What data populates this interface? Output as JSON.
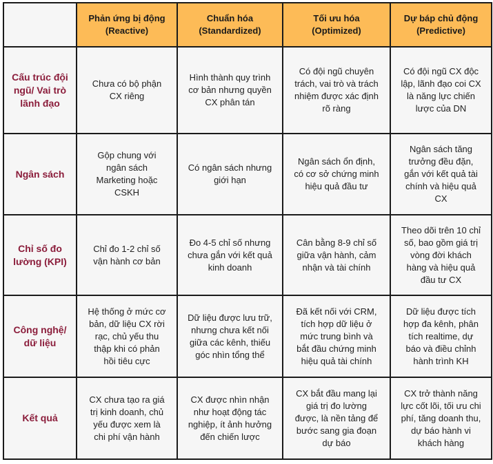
{
  "columns": [
    {
      "title": "Phản ứng bị động",
      "subtitle": "(Reactive)"
    },
    {
      "title": "Chuẩn hóa",
      "subtitle": "(Standardized)"
    },
    {
      "title": "Tối ưu hóa",
      "subtitle": "(Optimized)"
    },
    {
      "title": "Dự báp chủ động",
      "subtitle": "(Predictive)"
    }
  ],
  "rows": [
    {
      "label": "Cấu trúc đội ngũ/ Vai trò lãnh đạo",
      "cells": [
        "Chưa có bộ phận CX riêng",
        "Hình thành quy trình cơ bản nhưng quyền CX phân tán",
        "Có đội ngũ chuyên trách, vai trò và trách nhiệm được xác định rõ ràng",
        "Có đội ngũ CX độc lập, lãnh đạo coi CX là năng lực chiến lược của DN"
      ]
    },
    {
      "label": "Ngân sách",
      "cells": [
        "Gộp chung với ngân sách Marketing hoặc CSKH",
        "Có ngân sách nhưng giới hạn",
        "Ngân sách ổn định, có cơ sở chứng minh hiệu quả đầu tư",
        "Ngân sách tăng trưởng đều đặn, gắn với kết quả tài chính và hiệu quả CX"
      ]
    },
    {
      "label": "Chỉ số đo lường (KPI)",
      "cells": [
        "Chỉ đo 1-2 chỉ số vận hành cơ bản",
        "Đo 4-5 chỉ số nhưng chưa gắn với kết quả kinh doanh",
        "Cân bằng 8-9 chỉ số giữa vận hành, cảm nhận và tài chính",
        "Theo dõi trên 10 chỉ số, bao gồm giá trị vòng đời khách hàng và hiệu quả đầu  tư CX"
      ]
    },
    {
      "label": "Công nghệ/ dữ liệu",
      "cells": [
        "Hệ thống ở mức cơ bản, dữ liệu CX rời rạc, chủ yếu thu thập khi có phản hồi tiêu cực",
        "Dữ liệu được lưu trữ, nhưng chưa kết nối giữa các kênh, thiếu góc nhìn tổng thể",
        "Đã kết nối với CRM, tích hợp dữ liệu ở mức trung bình và bắt đầu chứng minh hiệu quả tài chính",
        "Dữ liệu được tích hợp đa kênh, phân tích realtime, dự báo và điều chỉnh hành trình KH"
      ]
    },
    {
      "label": "Kết quả",
      "cells": [
        "CX chưa tạo ra giá trị kinh doanh, chủ yếu được xem là chi phí vận hành",
        "CX được nhìn nhận như hoạt động tác nghiệp, ít ảnh hưởng đến chiến lược",
        "CX bắt đầu mang lại giá trị đo lường được, là nền tảng để bước sang gia đoạn dự báo",
        "CX trở thành năng lực cốt lõi, tối ưu chi phí, tăng doanh thu, dự báo hành vi khách hàng"
      ]
    }
  ],
  "colors": {
    "header_bg": "#fdbb57",
    "row_label": "#8b1d3b",
    "cell_bg": "#f6f6f6",
    "border": "#1a1a1a"
  }
}
